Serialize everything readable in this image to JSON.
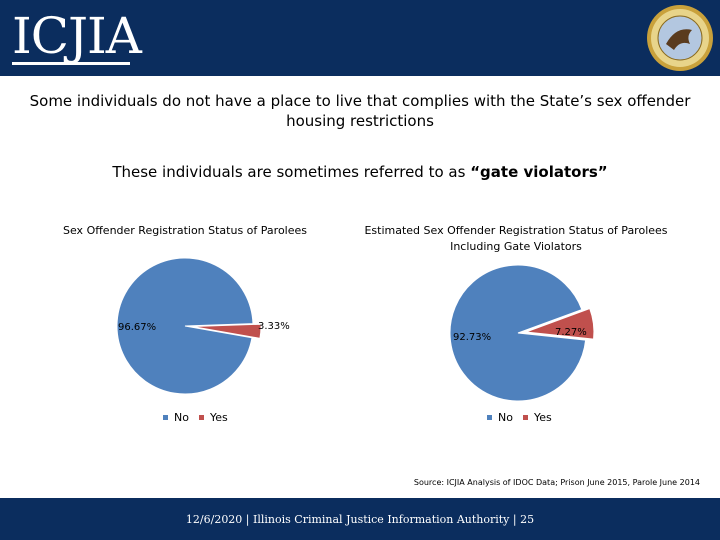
{
  "header": {
    "logo_text": "ICJIA",
    "seal_text": "SEAL OF THE STATE OF ILLINOIS"
  },
  "headline1": "Some individuals do not have a place to live that complies with the State’s sex offender housing restrictions",
  "headline2_prefix": "These individuals are sometimes referred to as ",
  "headline2_bold": "“gate violators”",
  "colors": {
    "no": "#4f81bd",
    "yes": "#c0504d",
    "bar": "#0b2d5e"
  },
  "chart_data": [
    {
      "type": "pie",
      "title": "Sex Offender Registration Status of Parolees",
      "categories": [
        "No",
        "Yes"
      ],
      "values": [
        96.67,
        3.33
      ],
      "labels": [
        "96.67%",
        "3.33%"
      ],
      "legend": "bottom",
      "exploded": "Yes"
    },
    {
      "type": "pie",
      "title": "Estimated Sex Offender Registration Status of Parolees Including Gate Violators",
      "categories": [
        "No",
        "Yes"
      ],
      "values": [
        92.73,
        7.27
      ],
      "labels": [
        "92.73%",
        "7.27%"
      ],
      "legend": "bottom",
      "exploded": "Yes"
    }
  ],
  "source": "Source: ICJIA Analysis of IDOC Data; Prison June 2015, Parole June 2014",
  "footer": "12/6/2020 | Illinois Criminal Justice Information Authority | 25"
}
